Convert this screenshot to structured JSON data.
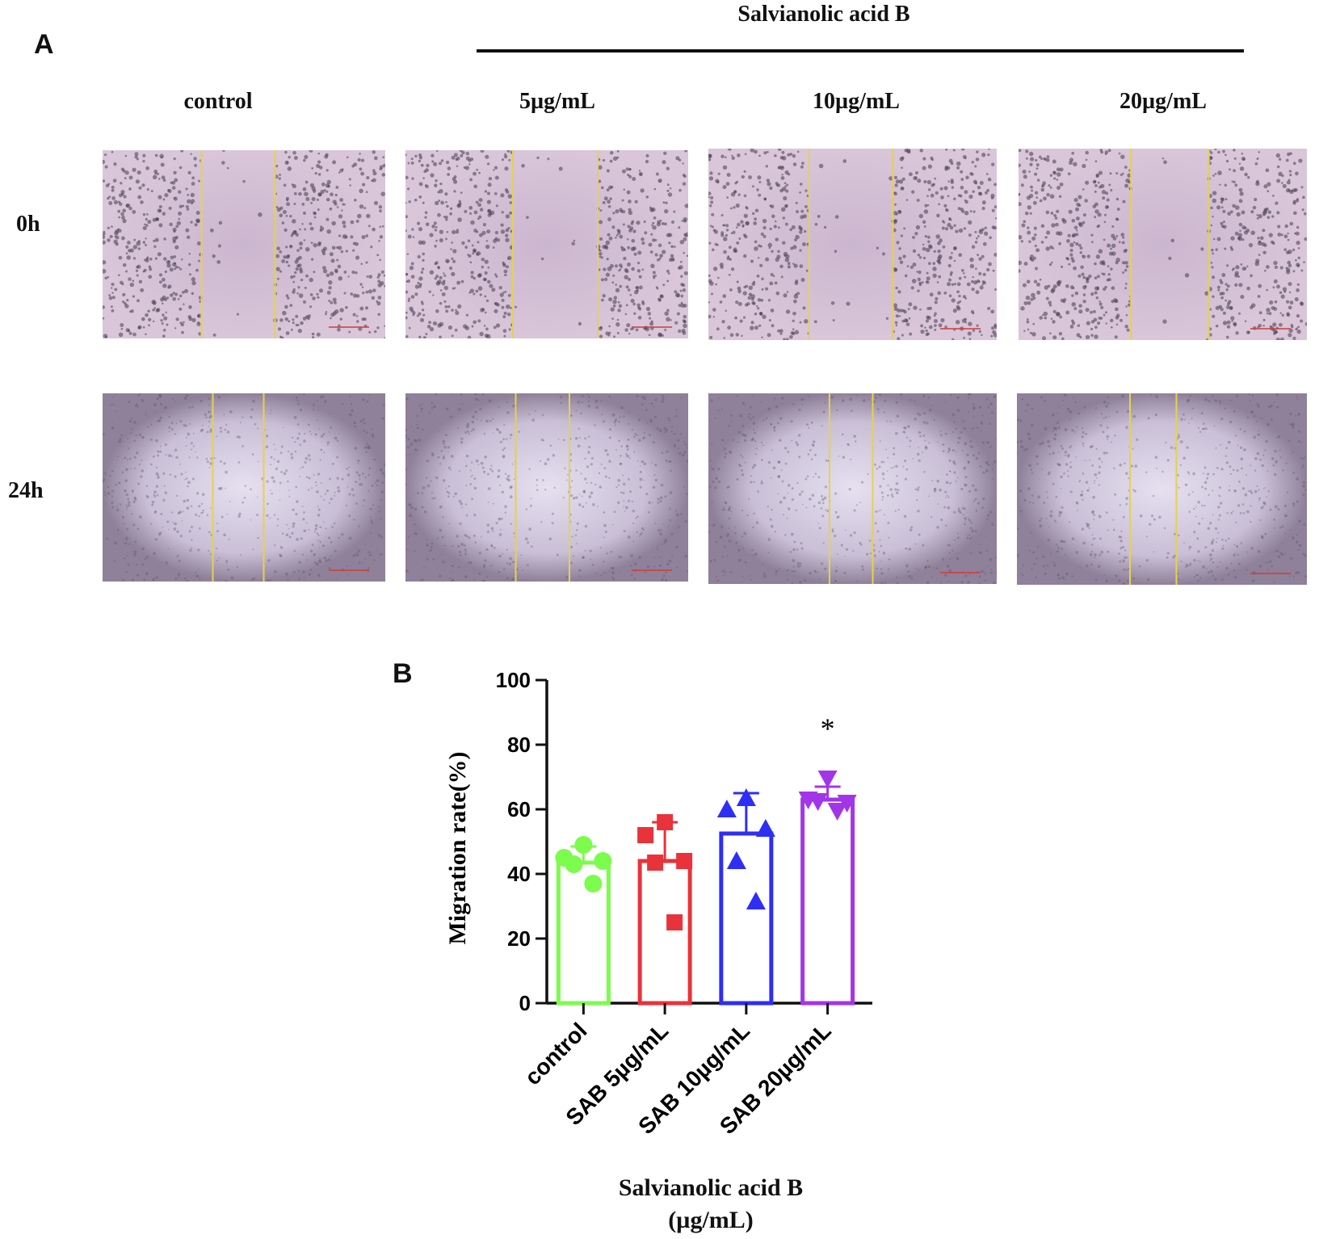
{
  "panel_a": {
    "letter": "A",
    "group_label": "Salvianolic acid B",
    "columns": [
      "control",
      "5µg/mL",
      "10µg/mL",
      "20µg/mL"
    ],
    "rows": [
      "0h",
      "24h"
    ]
  },
  "panel_b": {
    "letter": "B",
    "significance_mark": "*",
    "xlabel_line1": "Salvianolic acid B",
    "xlabel_line2": "(µg/mL)"
  },
  "chart_data": {
    "type": "bar",
    "categories": [
      "control",
      "SAB 5µg/mL",
      "SAB 10µg/mL",
      "SAB 20µg/mL"
    ],
    "values": [
      43.5,
      44,
      52.5,
      63
    ],
    "error_upper": [
      48.5,
      56,
      65,
      67
    ],
    "points": [
      [
        49,
        45,
        44,
        43,
        37
      ],
      [
        56,
        52,
        44,
        43.5,
        25
      ],
      [
        63.5,
        60,
        54,
        44,
        31.5
      ],
      [
        69.5,
        63,
        62,
        62.5,
        59.5
      ]
    ],
    "markers": [
      "circle",
      "square",
      "triangle-up",
      "triangle-down"
    ],
    "colors": [
      "#7CFC4C",
      "#E8333A",
      "#2E2EF5",
      "#A335E8"
    ],
    "ylabel": "Migration rate(%)",
    "xlabel": "Salvianolic acid B (µg/mL)",
    "ylim": [
      0,
      100
    ],
    "yticks": [
      0,
      20,
      40,
      60,
      80,
      100
    ],
    "significance": [
      "",
      "",
      "",
      "*"
    ]
  }
}
